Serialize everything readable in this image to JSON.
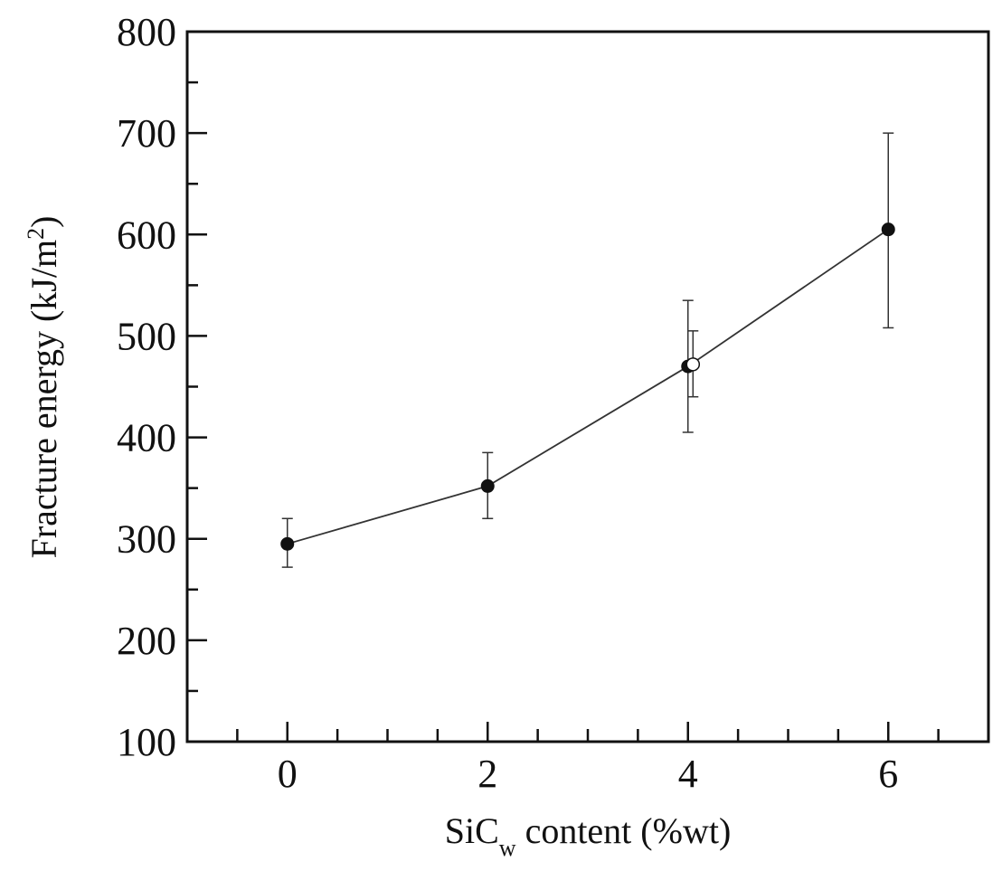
{
  "chart_data": {
    "type": "line",
    "xlabel": {
      "main": "SiC",
      "subscript": "w",
      "rest": " content (%wt)"
    },
    "ylabel": {
      "main": "Fracture energy (kJ/m",
      "superscript": "2",
      "rest": ")"
    },
    "xlim": [
      -1,
      7
    ],
    "ylim": [
      100,
      800
    ],
    "xticks": [
      0,
      2,
      4,
      6
    ],
    "xticklabels": [
      "0",
      "2",
      "4",
      "6"
    ],
    "xminor_step": 0.5,
    "yticks": [
      100,
      200,
      300,
      400,
      500,
      600,
      700,
      800
    ],
    "yticklabels": [
      "100",
      "200",
      "300",
      "400",
      "500",
      "600",
      "700",
      "800"
    ],
    "yminor_step": 50,
    "grid": false,
    "series": [
      {
        "marker": "filled-circle",
        "line": true,
        "points": [
          {
            "x": 0,
            "y": 295,
            "err_low": 272,
            "err_high": 320
          },
          {
            "x": 2,
            "y": 352,
            "err_low": 320,
            "err_high": 385
          },
          {
            "x": 4,
            "y": 470,
            "err_low": 405,
            "err_high": 535
          },
          {
            "x": 6,
            "y": 605,
            "err_low": 508,
            "err_high": 700
          }
        ]
      },
      {
        "marker": "open-circle",
        "line": false,
        "points": [
          {
            "x": 4.05,
            "y": 472,
            "err_low": 440,
            "err_high": 505
          }
        ]
      }
    ],
    "colors": {
      "axis": "#111111",
      "line": "#333333",
      "marker": "#111111"
    }
  }
}
